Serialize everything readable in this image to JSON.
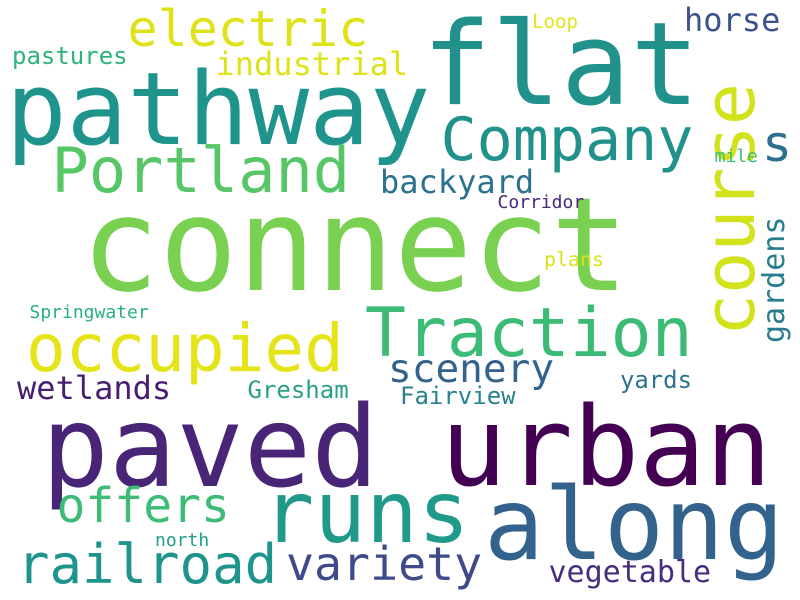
{
  "words": [
    {
      "text": "connect",
      "color": "#7ad151"
    },
    {
      "text": "paved",
      "color": "#482576"
    },
    {
      "text": "urban",
      "color": "#440154"
    },
    {
      "text": "flat",
      "color": "#21918c"
    },
    {
      "text": "pathway",
      "color": "#1f948c"
    },
    {
      "text": "runs",
      "color": "#1f9a8a"
    },
    {
      "text": "along",
      "color": "#33638d"
    },
    {
      "text": "course",
      "color": "#d2e21b"
    },
    {
      "text": "Traction",
      "color": "#3bbb75"
    },
    {
      "text": "occupied",
      "color": "#e4e419"
    },
    {
      "text": "Portland",
      "color": "#56c667"
    },
    {
      "text": "Company",
      "color": "#21918c"
    },
    {
      "text": "railroad",
      "color": "#1f948c"
    },
    {
      "text": "electric",
      "color": "#dde318"
    },
    {
      "text": "offers",
      "color": "#3cbc74"
    },
    {
      "text": "variety",
      "color": "#3e4a89"
    },
    {
      "text": "scenery",
      "color": "#33638d"
    },
    {
      "text": "vegetable",
      "color": "#472d7b"
    },
    {
      "text": "industrial",
      "color": "#dde318"
    },
    {
      "text": "backyard",
      "color": "#2c728e"
    },
    {
      "text": "s",
      "color": "#2d708e"
    },
    {
      "text": "horse",
      "color": "#3b528b"
    },
    {
      "text": "wetlands",
      "color": "#481f70"
    },
    {
      "text": "yards",
      "color": "#2c728e"
    },
    {
      "text": "gardens",
      "color": "#287d8e"
    },
    {
      "text": "pastures",
      "color": "#2eb37c"
    },
    {
      "text": "Gresham",
      "color": "#2a9f88"
    },
    {
      "text": "Fairview",
      "color": "#26828e"
    },
    {
      "text": "Corridor",
      "color": "#482878"
    },
    {
      "text": "Springwater",
      "color": "#29af7f"
    },
    {
      "text": "plans",
      "color": "#d8e219"
    },
    {
      "text": "Loop",
      "color": "#e5e419"
    },
    {
      "text": "mile",
      "color": "#3dbc74"
    },
    {
      "text": "north",
      "color": "#1f9e89"
    }
  ]
}
